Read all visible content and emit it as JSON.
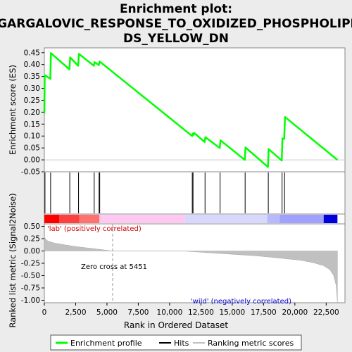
{
  "chart_data": {
    "type": "line",
    "title": "Enrichment plot: GARGALOVIC_RESPONSE_TO_OXIDIZED_PHOSPHOLIPIDS_YELLOW_DN",
    "title_lines": [
      "Enrichment plot:",
      "GARGALOVIC_RESPONSE_TO_OXIDIZED_PHOSPHOLIPI",
      "DS_YELLOW_DN"
    ],
    "xlabel": "Rank in Ordered Dataset",
    "xlim": [
      0,
      24000
    ],
    "x_ticks": [
      "0",
      "2,500",
      "5,000",
      "7,500",
      "10,000",
      "12,500",
      "15,000",
      "17,500",
      "20,000",
      "22,500"
    ],
    "x_tick_values": [
      0,
      2500,
      5000,
      7500,
      10000,
      12500,
      15000,
      17500,
      20000,
      22500
    ],
    "es_panel": {
      "ylabel": "Enrichment score (ES)",
      "ylim": [
        -0.05,
        0.47
      ],
      "y_ticks": [
        "0.45",
        "0.40",
        "0.35",
        "0.30",
        "0.25",
        "0.20",
        "0.15",
        "0.10",
        "0.05",
        "0.00",
        "-0.05"
      ],
      "y_tick_values": [
        0.45,
        0.4,
        0.35,
        0.3,
        0.25,
        0.2,
        0.15,
        0.1,
        0.05,
        0.0,
        -0.05
      ],
      "series": [
        {
          "name": "Enrichment profile",
          "color": "#00ff00",
          "x": [
            0,
            30,
            60,
            480,
            520,
            2000,
            2060,
            2700,
            2760,
            3950,
            4010,
            4350,
            4410,
            11800,
            11840,
            11920,
            11960,
            12800,
            12860,
            14000,
            14060,
            16000,
            16060,
            17850,
            17910,
            18950,
            19010,
            19150,
            19210,
            23400
          ],
          "y": [
            0.195,
            0.35,
            0.355,
            0.34,
            0.448,
            0.38,
            0.43,
            0.395,
            0.445,
            0.395,
            0.41,
            0.398,
            0.413,
            0.1,
            0.11,
            0.105,
            0.113,
            0.075,
            0.095,
            0.05,
            0.082,
            0.0,
            0.052,
            -0.03,
            0.045,
            -0.003,
            0.09,
            0.088,
            0.18,
            0.0
          ]
        }
      ]
    },
    "hits": {
      "name": "Hits",
      "color": "#000000",
      "x": [
        50,
        500,
        2030,
        2730,
        3980,
        4370,
        4420,
        11810,
        11870,
        12830,
        14030,
        16030,
        17880,
        18980,
        19180
      ]
    },
    "rank_bar": {
      "zero_cross_rank": 5451,
      "colors": [
        "#ff0000",
        "#ffb0b0",
        "#ffc8f0",
        "#d8d8ff",
        "#a0a0ff",
        "#0000dd"
      ]
    },
    "metric_panel": {
      "name": "Ranking metric scores",
      "ylabel": "Ranked list metric (Signal2Noise)",
      "ylim": [
        -1.05,
        0.55
      ],
      "y_ticks": [
        "0.50",
        "0.25",
        "0.00",
        "-0.25",
        "-0.50",
        "-0.75",
        "-1.00"
      ],
      "y_tick_values": [
        0.5,
        0.25,
        0.0,
        -0.25,
        -0.5,
        -0.75,
        -1.0
      ],
      "color": "#c0c0c0",
      "x": [
        0,
        100,
        300,
        800,
        1500,
        2500,
        3500,
        4500,
        5451,
        11000,
        14000,
        17000,
        19000,
        20500,
        21500,
        22300,
        22800,
        23100,
        23300,
        23400
      ],
      "y": [
        0.3,
        0.24,
        0.2,
        0.16,
        0.13,
        0.09,
        0.06,
        0.03,
        0.0,
        0.0,
        -0.05,
        -0.1,
        -0.15,
        -0.19,
        -0.24,
        -0.3,
        -0.38,
        -0.5,
        -0.7,
        -1.05
      ],
      "pos_label": "'lab' (positively correlated)",
      "neg_label": "'wild' (negatively correlated)",
      "zero_cross_label": "Zero cross at 5451"
    },
    "legend": {
      "placement": "bottom",
      "items": [
        {
          "label": "Enrichment profile",
          "color": "#00ff00"
        },
        {
          "label": "Hits",
          "color": "#000000"
        },
        {
          "label": "Ranking metric scores",
          "color": "#c0c0c0"
        }
      ]
    }
  }
}
